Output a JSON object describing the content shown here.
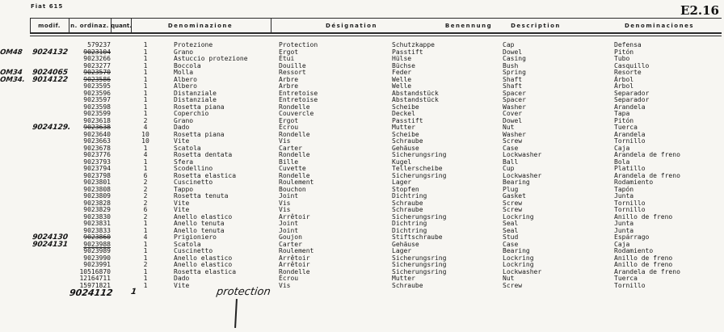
{
  "page": {
    "doc_ref": "Fiat 615",
    "page_code": "E2.16"
  },
  "table": {
    "columns": [
      "modif.",
      "n. ordinaz.",
      "quant.",
      "Denominazione",
      "Désignation",
      "Benennung",
      "Description",
      "Denominaciones"
    ],
    "rows": [
      {
        "m": "",
        "h": "",
        "n": "579237",
        "s": "",
        "q": "1",
        "it": "Protezione",
        "fr": "Protection",
        "de": "Schutzkappe",
        "en": "Cap",
        "es": "Defensa"
      },
      {
        "m": "OM48",
        "h": "9024132",
        "n": "9023104",
        "s": "strike",
        "q": "1",
        "it": "Grano",
        "fr": "Ergot",
        "de": "Passtift",
        "en": "Dowel",
        "es": "Pitón"
      },
      {
        "m": "",
        "h": "",
        "n": "9023266",
        "s": "",
        "q": "1",
        "it": "Astuccio protezione",
        "fr": "Étui",
        "de": "Hülse",
        "en": "Casing",
        "es": "Tubo"
      },
      {
        "m": "",
        "h": "",
        "n": "9023277",
        "s": "",
        "q": "1",
        "it": "Boccola",
        "fr": "Douille",
        "de": "Büchse",
        "en": "Bush",
        "es": "Casquillo"
      },
      {
        "m": "OM34",
        "h": "9024065",
        "n": "9023570",
        "s": "strike",
        "q": "1",
        "it": "Molla",
        "fr": "Ressort",
        "de": "Feder",
        "en": "Spring",
        "es": "Resorte"
      },
      {
        "m": "OM34.",
        "h": "9014122",
        "n": "9023586",
        "s": "strike",
        "q": "1",
        "it": "Albero",
        "fr": "Arbre",
        "de": "Welle",
        "en": "Shaft",
        "es": "Árbol"
      },
      {
        "m": "",
        "h": "",
        "n": "9023595",
        "s": "",
        "q": "1",
        "it": "Albero",
        "fr": "Arbre",
        "de": "Welle",
        "en": "Shaft",
        "es": "Árbol"
      },
      {
        "m": "",
        "h": "",
        "n": "9023596",
        "s": "",
        "q": "1",
        "it": "Distanziale",
        "fr": "Entretoise",
        "de": "Abstandstück",
        "en": "Spacer",
        "es": "Separador"
      },
      {
        "m": "",
        "h": "",
        "n": "9023597",
        "s": "",
        "q": "1",
        "it": "Distanziale",
        "fr": "Entretoise",
        "de": "Abstandstück",
        "en": "Spacer",
        "es": "Separador"
      },
      {
        "m": "",
        "h": "",
        "n": "9023598",
        "s": "",
        "q": "1",
        "it": "Rosetta piana",
        "fr": "Rondelle",
        "de": "Scheibe",
        "en": "Washer",
        "es": "Arandela"
      },
      {
        "m": "",
        "h": "",
        "n": "9023599",
        "s": "",
        "q": "1",
        "it": "Coperchio",
        "fr": "Couvercle",
        "de": "Deckel",
        "en": "Cover",
        "es": "Tapa"
      },
      {
        "m": "",
        "h": "",
        "n": "9023618",
        "s": "",
        "q": "2",
        "it": "Grano",
        "fr": "Ergot",
        "de": "Passtift",
        "en": "Dowel",
        "es": "Pitón"
      },
      {
        "m": "",
        "h": "9024129.",
        "n": "9023638",
        "s": "strike",
        "q": "4",
        "it": "Dado",
        "fr": "Écrou",
        "de": "Mutter",
        "en": "Nut",
        "es": "Tuerca"
      },
      {
        "m": "",
        "h": "",
        "n": "9023640",
        "s": "",
        "q": "10",
        "it": "Rosetta piana",
        "fr": "Rondelle",
        "de": "Scheibe",
        "en": "Washer",
        "es": "Arandela"
      },
      {
        "m": "",
        "h": "",
        "n": "9023663",
        "s": "",
        "q": "10",
        "it": "Vite",
        "fr": "Vis",
        "de": "Schraube",
        "en": "Screw",
        "es": "Tornillo"
      },
      {
        "m": "",
        "h": "",
        "n": "9023678",
        "s": "",
        "q": "1",
        "it": "Scatola",
        "fr": "Carter",
        "de": "Gehäuse",
        "en": "Case",
        "es": "Caja"
      },
      {
        "m": "",
        "h": "",
        "n": "9023776",
        "s": "",
        "q": "4",
        "it": "Rosetta dentata",
        "fr": "Rondelle",
        "de": "Sicherungsring",
        "en": "Lockwasher",
        "es": "Arandela de freno"
      },
      {
        "m": "",
        "h": "",
        "n": "9023793",
        "s": "",
        "q": "1",
        "it": "Sfera",
        "fr": "Bille",
        "de": "Kugel",
        "en": "Ball",
        "es": "Bola"
      },
      {
        "m": "",
        "h": "",
        "n": "9023794",
        "s": "",
        "q": "1",
        "it": "Scodellino",
        "fr": "Cuvette",
        "de": "Tellerscheibe",
        "en": "Cup",
        "es": "Platillo"
      },
      {
        "m": "",
        "h": "",
        "n": "9023798",
        "s": "",
        "q": "6",
        "it": "Rosetta elastica",
        "fr": "Rondelle",
        "de": "Sicherungsring",
        "en": "Lockwasher",
        "es": "Arandela de freno"
      },
      {
        "m": "",
        "h": "",
        "n": "9023801",
        "s": "",
        "q": "2",
        "it": "Cuscinetto",
        "fr": "Roulement",
        "de": "Lager",
        "en": "Bearing",
        "es": "Rodamiento"
      },
      {
        "m": "",
        "h": "",
        "n": "9023808",
        "s": "",
        "q": "2",
        "it": "Tappo",
        "fr": "Bouchon",
        "de": "Stopfen",
        "en": "Plug",
        "es": "Tapón"
      },
      {
        "m": "",
        "h": "",
        "n": "9023809",
        "s": "",
        "q": "2",
        "it": "Rosetta tenuta",
        "fr": "Joint",
        "de": "Dichtring",
        "en": "Gasket",
        "es": "Junta"
      },
      {
        "m": "",
        "h": "",
        "n": "9023828",
        "s": "",
        "q": "2",
        "it": "Vite",
        "fr": "Vis",
        "de": "Schraube",
        "en": "Screw",
        "es": "Tornillo"
      },
      {
        "m": "",
        "h": "",
        "n": "9023829",
        "s": "",
        "q": "6",
        "it": "Vite",
        "fr": "Vis",
        "de": "Schraube",
        "en": "Screw",
        "es": "Tornillo"
      },
      {
        "m": "",
        "h": "",
        "n": "9023830",
        "s": "",
        "q": "2",
        "it": "Anello elastico",
        "fr": "Arrêtoir",
        "de": "Sicherungsring",
        "en": "Lockring",
        "es": "Anillo de freno"
      },
      {
        "m": "",
        "h": "",
        "n": "9023831",
        "s": "",
        "q": "1",
        "it": "Anello tenuta",
        "fr": "Joint",
        "de": "Dichtring",
        "en": "Seal",
        "es": "Junta"
      },
      {
        "m": "",
        "h": "",
        "n": "9023833",
        "s": "",
        "q": "1",
        "it": "Anello tenuta",
        "fr": "Joint",
        "de": "Dichtring",
        "en": "Seal",
        "es": "Junta"
      },
      {
        "m": "",
        "h": "9024130",
        "n": "9023860",
        "s": "strike",
        "q": "4",
        "it": "Prigioniero",
        "fr": "Goujon",
        "de": "Stiftschraube",
        "en": "Stud",
        "es": "Espárrago"
      },
      {
        "m": "",
        "h": "9024131",
        "n": "9023988",
        "s": "uline",
        "q": "1",
        "it": "Scatola",
        "fr": "Carter",
        "de": "Gehäuse",
        "en": "Case",
        "es": "Caja"
      },
      {
        "m": "",
        "h": "",
        "n": "9023989",
        "s": "",
        "q": "1",
        "it": "Cuscinetto",
        "fr": "Roulement",
        "de": "Lager",
        "en": "Bearing",
        "es": "Rodamiento"
      },
      {
        "m": "",
        "h": "",
        "n": "9023990",
        "s": "",
        "q": "1",
        "it": "Anello elastico",
        "fr": "Arrêtoir",
        "de": "Sicherungsring",
        "en": "Lockring",
        "es": "Anillo de freno"
      },
      {
        "m": "",
        "h": "",
        "n": "9023991",
        "s": "",
        "q": "2",
        "it": "Anello elastico",
        "fr": "Arrêtoir",
        "de": "Sicherungsring",
        "en": "Lockring",
        "es": "Anillo de freno"
      },
      {
        "m": "",
        "h": "",
        "n": "10516870",
        "s": "",
        "q": "1",
        "it": "Rosetta elastica",
        "fr": "Rondelle",
        "de": "Sicherungsring",
        "en": "Lockwasher",
        "es": "Arandela de freno"
      },
      {
        "m": "",
        "h": "",
        "n": "12164711",
        "s": "",
        "q": "1",
        "it": "Dado",
        "fr": "Écrou",
        "de": "Mutter",
        "en": "Nut",
        "es": "Tuerca"
      },
      {
        "m": "",
        "h": "",
        "n": "15971821",
        "s": "",
        "q": "1",
        "it": "Vite",
        "fr": "Vis",
        "de": "Schraube",
        "en": "Screw",
        "es": "Tornillo"
      }
    ],
    "handwritten_row": {
      "num": "9024112",
      "qty": "1",
      "label": "protection"
    }
  }
}
